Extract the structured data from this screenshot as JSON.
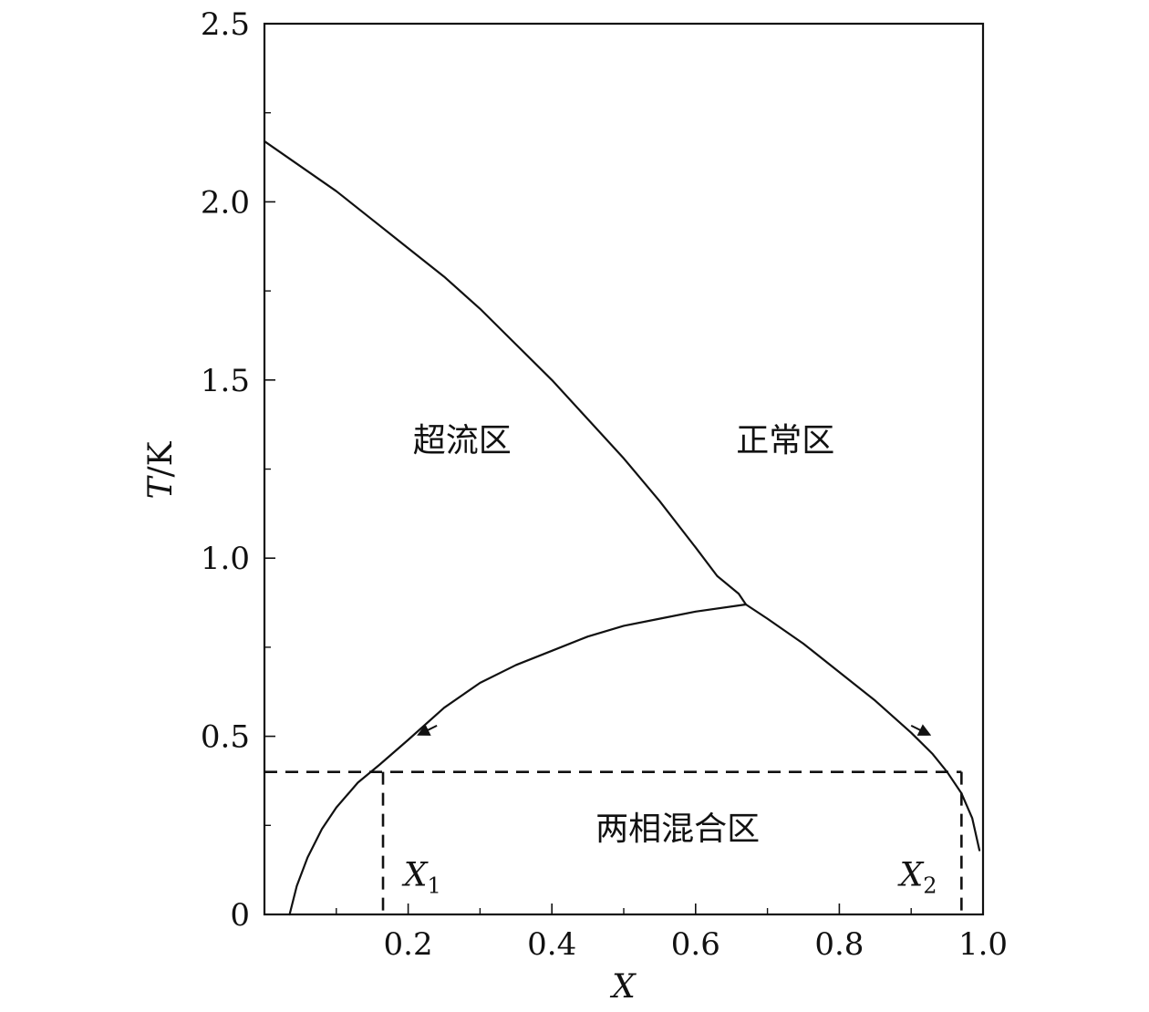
{
  "chart_data": {
    "type": "line",
    "title": "",
    "xlabel": "X",
    "ylabel_var": "T",
    "ylabel_unit": "/K",
    "xlim": [
      0.0,
      1.0
    ],
    "ylim": [
      0.0,
      2.5
    ],
    "x_ticks": [
      0.2,
      0.4,
      0.6,
      0.8,
      1.0
    ],
    "x_tick_labels": [
      "0.2",
      "0.4",
      "0.6",
      "0.8",
      "1.0"
    ],
    "y_ticks": [
      0.0,
      0.5,
      1.0,
      1.5,
      2.0,
      2.5
    ],
    "y_tick_labels": [
      "0",
      "0.5",
      "1.0",
      "1.5",
      "2.0",
      "2.5"
    ],
    "grid": false,
    "series": [
      {
        "style": "solid",
        "x": [
          0.0,
          0.05,
          0.1,
          0.15,
          0.2,
          0.25,
          0.3,
          0.35,
          0.4,
          0.45,
          0.5,
          0.55,
          0.6,
          0.63,
          0.66,
          0.67
        ],
        "y": [
          2.17,
          2.1,
          2.03,
          1.95,
          1.87,
          1.79,
          1.7,
          1.6,
          1.5,
          1.39,
          1.28,
          1.16,
          1.03,
          0.95,
          0.9,
          0.87
        ]
      },
      {
        "style": "solid",
        "x": [
          0.035,
          0.045,
          0.06,
          0.08,
          0.1,
          0.13,
          0.16,
          0.2,
          0.25,
          0.3,
          0.35,
          0.4,
          0.45,
          0.5,
          0.55,
          0.6,
          0.67
        ],
        "y": [
          0.0,
          0.08,
          0.16,
          0.24,
          0.3,
          0.37,
          0.42,
          0.49,
          0.58,
          0.65,
          0.7,
          0.74,
          0.78,
          0.81,
          0.83,
          0.85,
          0.87
        ]
      },
      {
        "style": "solid",
        "x": [
          0.67,
          0.7,
          0.75,
          0.8,
          0.85,
          0.9,
          0.93,
          0.95,
          0.97,
          0.985,
          0.995
        ],
        "y": [
          0.87,
          0.83,
          0.76,
          0.68,
          0.6,
          0.51,
          0.45,
          0.4,
          0.34,
          0.27,
          0.18
        ]
      }
    ],
    "reference_lines": [
      {
        "style": "dashed",
        "from": [
          0.0,
          0.4
        ],
        "to": [
          0.97,
          0.4
        ]
      },
      {
        "style": "dashed",
        "from": [
          0.165,
          0.4
        ],
        "to": [
          0.165,
          0.0
        ]
      },
      {
        "style": "dashed",
        "from": [
          0.97,
          0.4
        ],
        "to": [
          0.97,
          0.0
        ]
      }
    ],
    "arrows": [
      {
        "from": [
          0.24,
          0.53
        ],
        "to": [
          0.22,
          0.51
        ]
      },
      {
        "from": [
          0.9,
          0.53
        ],
        "to": [
          0.92,
          0.51
        ]
      }
    ],
    "annotations": [
      {
        "text": "超流区",
        "x": 0.275,
        "y": 1.3
      },
      {
        "text": "正常区",
        "x": 0.725,
        "y": 1.3
      },
      {
        "text": "两相混合区",
        "x": 0.575,
        "y": 0.21
      }
    ],
    "markers": [
      {
        "main": "X",
        "sub": "1",
        "x": 0.22,
        "y": 0.08
      },
      {
        "main": "X",
        "sub": "2",
        "x": 0.91,
        "y": 0.08
      }
    ]
  }
}
